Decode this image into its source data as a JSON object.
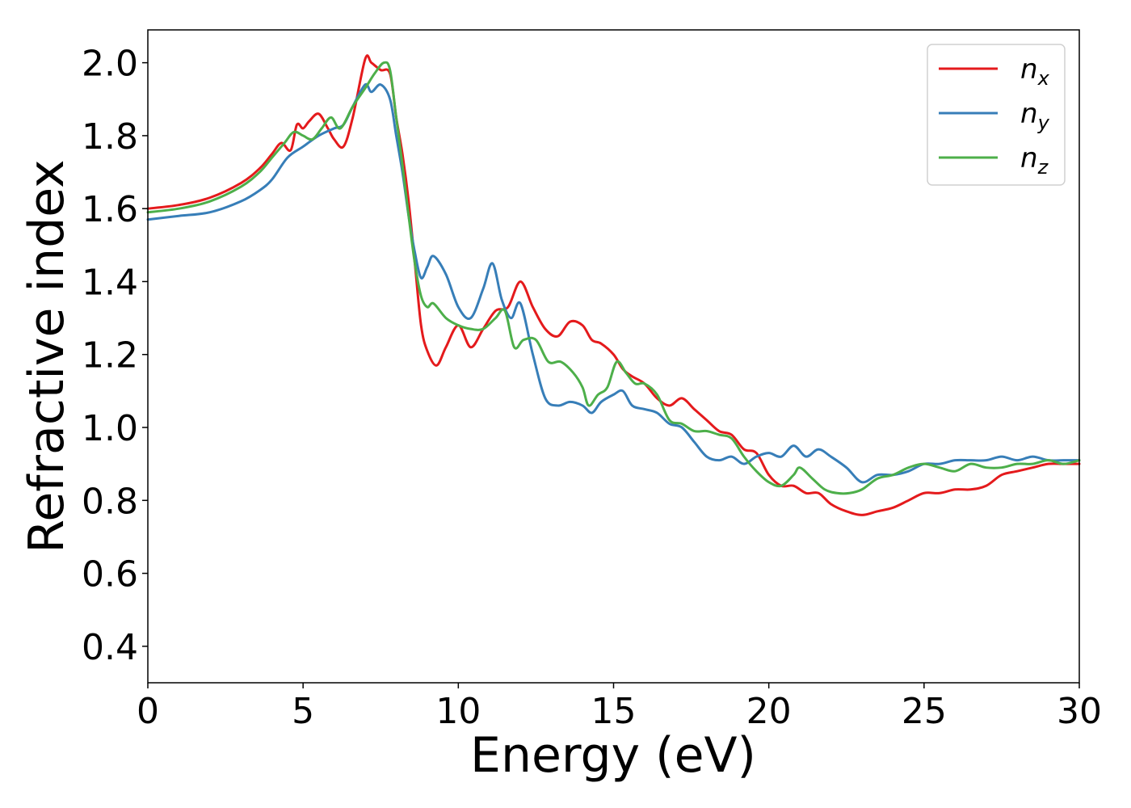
{
  "chart_data": {
    "type": "line",
    "title": "",
    "xlabel": "Energy (eV)",
    "ylabel": "Refractive index",
    "xlim": [
      0,
      30
    ],
    "ylim": [
      0.3,
      2.09
    ],
    "xticks": [
      "0",
      "5",
      "10",
      "15",
      "20",
      "25",
      "30"
    ],
    "yticks": [
      "0.4",
      "0.6",
      "0.8",
      "1.0",
      "1.2",
      "1.4",
      "1.6",
      "1.8",
      "2.0"
    ],
    "grid": false,
    "legend_position": "top-right",
    "series": [
      {
        "name": "n",
        "subscript": "x",
        "color": "#e41a1c",
        "x": [
          0,
          1,
          2,
          3,
          3.6,
          4.0,
          4.3,
          4.6,
          4.8,
          5.0,
          5.2,
          5.5,
          5.8,
          6.0,
          6.3,
          6.6,
          7.0,
          7.2,
          7.5,
          7.8,
          8.0,
          8.2,
          8.4,
          8.6,
          8.8,
          9.0,
          9.3,
          9.6,
          10.0,
          10.4,
          10.8,
          11.2,
          11.6,
          12.0,
          12.4,
          12.8,
          13.2,
          13.6,
          14.0,
          14.3,
          14.6,
          15.0,
          15.3,
          15.6,
          16.0,
          16.4,
          16.8,
          17.2,
          17.6,
          18.0,
          18.4,
          18.8,
          19.2,
          19.6,
          20.0,
          20.4,
          20.8,
          21.2,
          21.6,
          22.0,
          22.5,
          23.0,
          23.5,
          24.0,
          24.5,
          25.0,
          25.5,
          26.0,
          26.5,
          27.0,
          27.5,
          28.0,
          28.5,
          29.0,
          29.5,
          30.0
        ],
        "values": [
          1.6,
          1.61,
          1.63,
          1.67,
          1.71,
          1.75,
          1.78,
          1.76,
          1.83,
          1.82,
          1.84,
          1.86,
          1.82,
          1.79,
          1.77,
          1.85,
          2.01,
          2.0,
          1.98,
          1.97,
          1.85,
          1.75,
          1.62,
          1.45,
          1.28,
          1.21,
          1.17,
          1.22,
          1.28,
          1.22,
          1.27,
          1.32,
          1.33,
          1.4,
          1.33,
          1.27,
          1.25,
          1.29,
          1.28,
          1.24,
          1.23,
          1.2,
          1.16,
          1.14,
          1.12,
          1.08,
          1.06,
          1.08,
          1.05,
          1.02,
          0.99,
          0.98,
          0.94,
          0.93,
          0.87,
          0.84,
          0.84,
          0.82,
          0.82,
          0.79,
          0.77,
          0.76,
          0.77,
          0.78,
          0.8,
          0.82,
          0.82,
          0.83,
          0.83,
          0.84,
          0.87,
          0.88,
          0.89,
          0.9,
          0.9,
          0.9
        ]
      },
      {
        "name": "n",
        "subscript": "y",
        "color": "#377eb8",
        "x": [
          0,
          1,
          2,
          3,
          3.6,
          4.0,
          4.5,
          5.0,
          5.5,
          6.0,
          6.3,
          6.6,
          7.0,
          7.2,
          7.5,
          7.8,
          8.0,
          8.2,
          8.4,
          8.6,
          8.8,
          9.0,
          9.2,
          9.6,
          10.0,
          10.4,
          10.8,
          11.1,
          11.4,
          11.7,
          12.0,
          12.4,
          12.8,
          13.2,
          13.6,
          14.0,
          14.3,
          14.6,
          15.0,
          15.3,
          15.6,
          16.0,
          16.4,
          16.8,
          17.2,
          17.6,
          18.0,
          18.4,
          18.8,
          19.2,
          19.6,
          20.0,
          20.4,
          20.8,
          21.2,
          21.6,
          22.0,
          22.5,
          23.0,
          23.5,
          24.0,
          24.5,
          25.0,
          25.5,
          26.0,
          26.5,
          27.0,
          27.5,
          28.0,
          28.5,
          29.0,
          29.5,
          30.0
        ],
        "values": [
          1.57,
          1.58,
          1.59,
          1.62,
          1.65,
          1.68,
          1.74,
          1.77,
          1.8,
          1.82,
          1.83,
          1.88,
          1.94,
          1.92,
          1.94,
          1.9,
          1.8,
          1.7,
          1.58,
          1.48,
          1.41,
          1.44,
          1.47,
          1.42,
          1.33,
          1.3,
          1.38,
          1.45,
          1.35,
          1.3,
          1.34,
          1.2,
          1.08,
          1.06,
          1.07,
          1.06,
          1.04,
          1.07,
          1.09,
          1.1,
          1.06,
          1.05,
          1.04,
          1.01,
          1.0,
          0.96,
          0.92,
          0.91,
          0.92,
          0.9,
          0.92,
          0.93,
          0.92,
          0.95,
          0.92,
          0.94,
          0.92,
          0.89,
          0.85,
          0.87,
          0.87,
          0.88,
          0.9,
          0.9,
          0.91,
          0.91,
          0.91,
          0.92,
          0.91,
          0.92,
          0.91,
          0.91,
          0.91
        ]
      },
      {
        "name": "n",
        "subscript": "z",
        "color": "#4daf4a",
        "x": [
          0,
          1,
          2,
          3,
          3.6,
          4.0,
          4.4,
          4.7,
          5.0,
          5.3,
          5.6,
          5.9,
          6.2,
          6.6,
          7.0,
          7.3,
          7.6,
          7.8,
          8.0,
          8.2,
          8.4,
          8.6,
          8.8,
          9.0,
          9.2,
          9.6,
          10.0,
          10.4,
          10.8,
          11.2,
          11.5,
          11.8,
          12.1,
          12.5,
          12.9,
          13.3,
          13.7,
          14.0,
          14.2,
          14.5,
          14.8,
          15.1,
          15.4,
          15.7,
          16.0,
          16.4,
          16.8,
          17.2,
          17.6,
          18.0,
          18.4,
          18.8,
          19.2,
          19.6,
          20.0,
          20.4,
          20.8,
          21.0,
          21.4,
          21.8,
          22.2,
          22.6,
          23.0,
          23.5,
          24.0,
          24.5,
          25.0,
          25.5,
          26.0,
          26.5,
          27.0,
          27.5,
          28.0,
          28.5,
          29.0,
          29.5,
          30.0
        ],
        "values": [
          1.59,
          1.6,
          1.62,
          1.66,
          1.7,
          1.74,
          1.78,
          1.81,
          1.8,
          1.79,
          1.82,
          1.85,
          1.82,
          1.88,
          1.93,
          1.97,
          2.0,
          1.98,
          1.85,
          1.72,
          1.58,
          1.45,
          1.36,
          1.33,
          1.34,
          1.3,
          1.28,
          1.27,
          1.27,
          1.3,
          1.32,
          1.22,
          1.24,
          1.24,
          1.18,
          1.18,
          1.15,
          1.11,
          1.06,
          1.09,
          1.11,
          1.18,
          1.15,
          1.12,
          1.12,
          1.09,
          1.02,
          1.01,
          0.99,
          0.99,
          0.98,
          0.97,
          0.92,
          0.88,
          0.85,
          0.84,
          0.87,
          0.89,
          0.86,
          0.83,
          0.82,
          0.82,
          0.83,
          0.86,
          0.87,
          0.89,
          0.9,
          0.89,
          0.88,
          0.9,
          0.89,
          0.89,
          0.9,
          0.9,
          0.91,
          0.9,
          0.91
        ]
      }
    ]
  }
}
